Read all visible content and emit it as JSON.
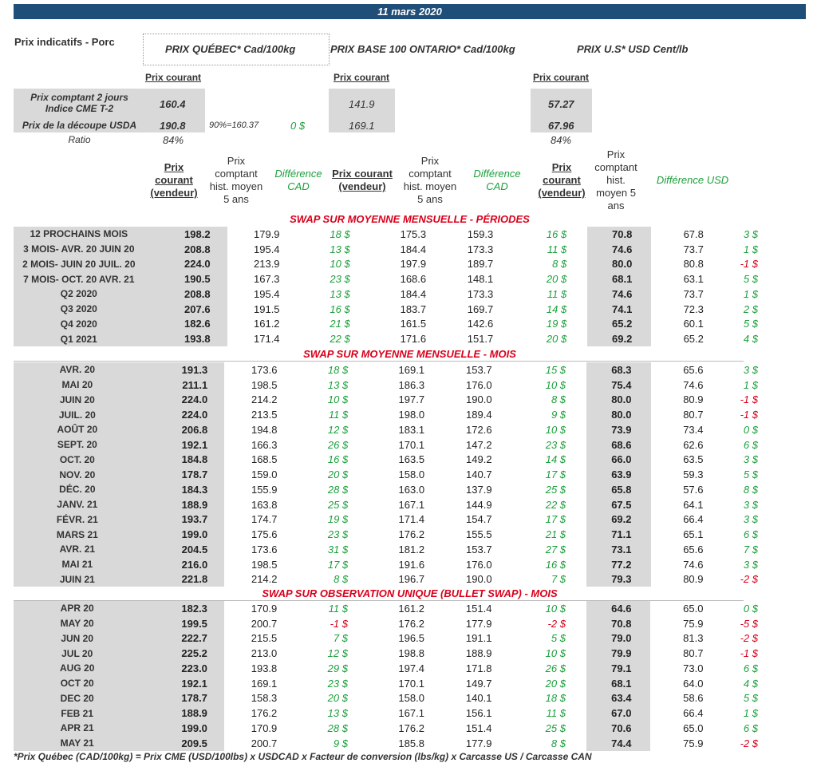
{
  "date": "11 mars 2020",
  "header": {
    "title": "Prix indicatifs - Porc",
    "quebec_title": "PRIX QUÉBEC* Cad/100kg",
    "ontario_title": "PRIX BASE 100 ONTARIO* Cad/100kg",
    "us_title": "PRIX U.S* USD Cent/lb",
    "prix_courant": "Prix courant"
  },
  "spot": {
    "row1_label_a": "Prix comptant 2 jours",
    "row1_label_b": "Indice CME T-2",
    "row1_quebec": "160.4",
    "row1_ontario": "141.9",
    "row1_us": "57.27",
    "row2_label": "Prix de la découpe USDA",
    "row2_quebec": "190.8",
    "row2_pct": "90%=160.37",
    "row2_diff": "0 $",
    "row2_ontario": "169.1",
    "row2_us": "67.96",
    "ratio_label": "Ratio",
    "ratio_quebec": "84%",
    "ratio_us": "84%"
  },
  "columns": {
    "quebec_current": [
      "Prix",
      "courant",
      "(vendeur)"
    ],
    "quebec_hist": [
      "Prix",
      "comptant",
      "hist. moyen",
      "5 ans"
    ],
    "quebec_diff": [
      "Différence",
      "CAD"
    ],
    "ontario_current": [
      "Prix courant",
      "(vendeur)"
    ],
    "ontario_hist": [
      "Prix",
      "comptant",
      "hist. moyen",
      "5 ans"
    ],
    "ontario_diff": [
      "Différence",
      "CAD"
    ],
    "us_current": [
      "Prix",
      "courant",
      "(vendeur)"
    ],
    "us_hist": [
      "Prix",
      "comptant",
      "hist.",
      "moyen 5",
      "ans"
    ],
    "us_diff": [
      "Différence USD"
    ]
  },
  "sections": [
    {
      "title": "SWAP SUR MOYENNE MENSUELLE - PÉRIODES",
      "rows": [
        [
          "12 PROCHAINS MOIS",
          "198.2",
          "179.9",
          "18 $",
          "175.3",
          "159.3",
          "16 $",
          "70.8",
          "67.8",
          "3 $"
        ],
        [
          "3 MOIS- AVR. 20 JUIN 20",
          "208.8",
          "195.4",
          "13 $",
          "184.4",
          "173.3",
          "11 $",
          "74.6",
          "73.7",
          "1 $"
        ],
        [
          "2 MOIS- JUIN 20 JUIL. 20",
          "224.0",
          "213.9",
          "10 $",
          "197.9",
          "189.7",
          "8 $",
          "80.0",
          "80.8",
          "-1 $"
        ],
        [
          "7 MOIS- OCT. 20 AVR. 21",
          "190.5",
          "167.3",
          "23 $",
          "168.6",
          "148.1",
          "20 $",
          "68.1",
          "63.1",
          "5 $"
        ],
        [
          "Q2 2020",
          "208.8",
          "195.4",
          "13 $",
          "184.4",
          "173.3",
          "11 $",
          "74.6",
          "73.7",
          "1 $"
        ],
        [
          "Q3 2020",
          "207.6",
          "191.5",
          "16 $",
          "183.7",
          "169.7",
          "14 $",
          "74.1",
          "72.3",
          "2 $"
        ],
        [
          "Q4 2020",
          "182.6",
          "161.2",
          "21 $",
          "161.5",
          "142.6",
          "19 $",
          "65.2",
          "60.1",
          "5 $"
        ],
        [
          "Q1 2021",
          "193.8",
          "171.4",
          "22 $",
          "171.6",
          "151.7",
          "20 $",
          "69.2",
          "65.2",
          "4 $"
        ]
      ]
    },
    {
      "title": "SWAP SUR MOYENNE MENSUELLE - MOIS",
      "rows": [
        [
          "AVR. 20",
          "191.3",
          "173.6",
          "18 $",
          "169.1",
          "153.7",
          "15 $",
          "68.3",
          "65.6",
          "3 $"
        ],
        [
          "MAI 20",
          "211.1",
          "198.5",
          "13 $",
          "186.3",
          "176.0",
          "10 $",
          "75.4",
          "74.6",
          "1 $"
        ],
        [
          "JUIN 20",
          "224.0",
          "214.2",
          "10 $",
          "197.7",
          "190.0",
          "8 $",
          "80.0",
          "80.9",
          "-1 $"
        ],
        [
          "JUIL. 20",
          "224.0",
          "213.5",
          "11 $",
          "198.0",
          "189.4",
          "9 $",
          "80.0",
          "80.7",
          "-1 $"
        ],
        [
          "AOÛT 20",
          "206.8",
          "194.8",
          "12 $",
          "183.1",
          "172.6",
          "10 $",
          "73.9",
          "73.4",
          "0 $"
        ],
        [
          "SEPT. 20",
          "192.1",
          "166.3",
          "26 $",
          "170.1",
          "147.2",
          "23 $",
          "68.6",
          "62.6",
          "6 $"
        ],
        [
          "OCT. 20",
          "184.8",
          "168.5",
          "16 $",
          "163.5",
          "149.2",
          "14 $",
          "66.0",
          "63.5",
          "3 $"
        ],
        [
          "NOV. 20",
          "178.7",
          "159.0",
          "20 $",
          "158.0",
          "140.7",
          "17 $",
          "63.9",
          "59.3",
          "5 $"
        ],
        [
          "DÉC. 20",
          "184.3",
          "155.9",
          "28 $",
          "163.0",
          "137.9",
          "25 $",
          "65.8",
          "57.6",
          "8 $"
        ],
        [
          "JANV. 21",
          "188.9",
          "163.8",
          "25 $",
          "167.1",
          "144.9",
          "22 $",
          "67.5",
          "64.1",
          "3 $"
        ],
        [
          "FÉVR. 21",
          "193.7",
          "174.7",
          "19 $",
          "171.4",
          "154.7",
          "17 $",
          "69.2",
          "66.4",
          "3 $"
        ],
        [
          "MARS 21",
          "199.0",
          "175.6",
          "23 $",
          "176.2",
          "155.5",
          "21 $",
          "71.1",
          "65.1",
          "6 $"
        ],
        [
          "AVR. 21",
          "204.5",
          "173.6",
          "31 $",
          "181.2",
          "153.7",
          "27 $",
          "73.1",
          "65.6",
          "7 $"
        ],
        [
          "MAI 21",
          "216.0",
          "198.5",
          "17 $",
          "191.6",
          "176.0",
          "16 $",
          "77.2",
          "74.6",
          "3 $"
        ],
        [
          "JUIN 21",
          "221.8",
          "214.2",
          "8 $",
          "196.7",
          "190.0",
          "7 $",
          "79.3",
          "80.9",
          "-2 $"
        ]
      ]
    },
    {
      "title": "SWAP SUR OBSERVATION UNIQUE (BULLET SWAP) - MOIS",
      "rows": [
        [
          "APR 20",
          "182.3",
          "170.9",
          "11 $",
          "161.2",
          "151.4",
          "10 $",
          "64.6",
          "65.0",
          "0 $"
        ],
        [
          "MAY 20",
          "199.5",
          "200.7",
          "-1 $",
          "176.2",
          "177.9",
          "-2 $",
          "70.8",
          "75.9",
          "-5 $"
        ],
        [
          "JUN 20",
          "222.7",
          "215.5",
          "7 $",
          "196.5",
          "191.1",
          "5 $",
          "79.0",
          "81.3",
          "-2 $"
        ],
        [
          "JUL 20",
          "225.2",
          "213.0",
          "12 $",
          "198.8",
          "188.9",
          "10 $",
          "79.9",
          "80.7",
          "-1 $"
        ],
        [
          "AUG 20",
          "223.0",
          "193.8",
          "29 $",
          "197.4",
          "171.8",
          "26 $",
          "79.1",
          "73.0",
          "6 $"
        ],
        [
          "OCT 20",
          "192.1",
          "169.1",
          "23 $",
          "170.1",
          "149.7",
          "20 $",
          "68.1",
          "64.0",
          "4 $"
        ],
        [
          "DEC 20",
          "178.7",
          "158.3",
          "20 $",
          "158.0",
          "140.1",
          "18 $",
          "63.4",
          "58.6",
          "5 $"
        ],
        [
          "FEB 21",
          "188.9",
          "176.2",
          "13 $",
          "167.1",
          "156.1",
          "11 $",
          "67.0",
          "66.4",
          "1 $"
        ],
        [
          "APR 21",
          "199.0",
          "170.9",
          "28 $",
          "176.2",
          "151.4",
          "25 $",
          "70.6",
          "65.0",
          "6 $"
        ],
        [
          "MAY 21",
          "209.5",
          "200.7",
          "9 $",
          "185.8",
          "177.9",
          "8 $",
          "74.4",
          "75.9",
          "-2 $"
        ]
      ]
    }
  ],
  "footnote": "*Prix Québec (CAD/100kg) = Prix CME (USD/100lbs) x USDCAD x Facteur de conversion (lbs/kg) x Carcasse US / Carcasse CAN"
}
